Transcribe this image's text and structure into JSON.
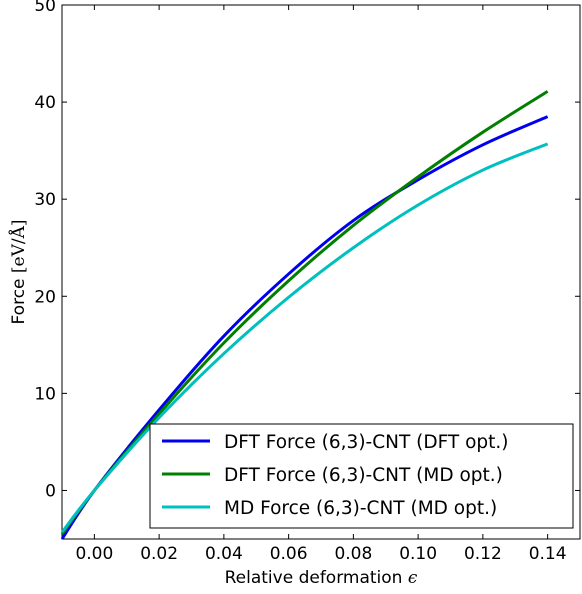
{
  "chart_data": {
    "type": "line",
    "xlabel": "Relative deformation ",
    "xlabel_symbol": "ϵ",
    "ylabel": "Force ",
    "ylabel_unit": "[eV/Å]",
    "xlim": [
      -0.01,
      0.15
    ],
    "ylim": [
      -5,
      50
    ],
    "x_ticks": [
      0.0,
      0.02,
      0.04,
      0.06,
      0.08,
      0.1,
      0.12,
      0.14
    ],
    "x_tick_labels": [
      "0.00",
      "0.02",
      "0.04",
      "0.06",
      "0.08",
      "0.10",
      "0.12",
      "0.14"
    ],
    "y_ticks": [
      0,
      10,
      20,
      30,
      40,
      50
    ],
    "y_tick_labels": [
      "0",
      "10",
      "20",
      "30",
      "40",
      "50"
    ],
    "grid": false,
    "legend_position": "lower-right",
    "series": [
      {
        "name": "DFT Force (6,3)-CNT (DFT opt.)",
        "color": "#0000ee",
        "x": [
          -0.01,
          0.0,
          0.02,
          0.04,
          0.06,
          0.08,
          0.1,
          0.12,
          0.14
        ],
        "y": [
          -5.0,
          0.0,
          8.3,
          15.9,
          22.3,
          27.8,
          32.0,
          35.6,
          38.5
        ]
      },
      {
        "name": "DFT Force (6,3)-CNT (MD opt.)",
        "color": "#007f00",
        "x": [
          -0.01,
          0.0,
          0.02,
          0.04,
          0.06,
          0.08,
          0.1,
          0.12,
          0.14
        ],
        "y": [
          -4.5,
          0.0,
          7.9,
          15.2,
          21.6,
          27.3,
          32.3,
          36.9,
          41.1
        ]
      },
      {
        "name": "MD Force (6,3)-CNT (MD opt.)",
        "color": "#00bfbf",
        "x": [
          -0.01,
          0.0,
          0.02,
          0.04,
          0.06,
          0.08,
          0.1,
          0.12,
          0.14
        ],
        "y": [
          -4.3,
          0.0,
          7.5,
          14.1,
          19.9,
          25.0,
          29.4,
          33.0,
          35.7
        ]
      }
    ]
  }
}
